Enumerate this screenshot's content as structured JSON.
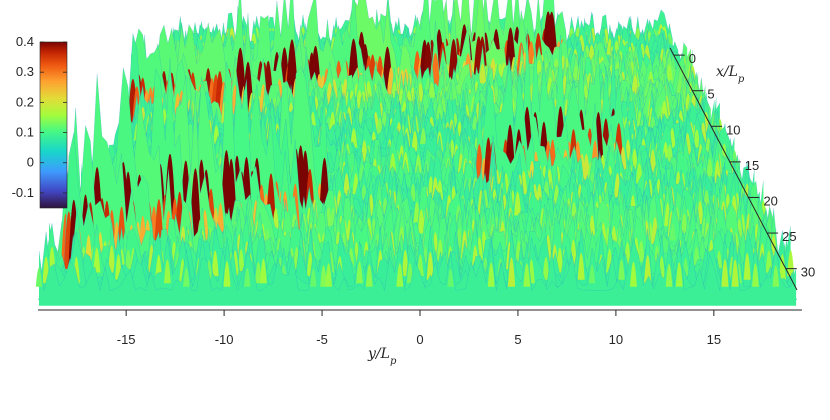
{
  "chart_data": {
    "type": "surface",
    "xlabel": "y/L_p",
    "ylabel": "x/L_p",
    "xlabel_main": "y/L",
    "xlabel_sub": "p",
    "ylabel_main": "x/L",
    "ylabel_sub": "p",
    "xlim": [
      -19.5,
      19.5
    ],
    "ylim": [
      -1,
      33
    ],
    "x_ticks": [
      -15,
      -10,
      -5,
      0,
      5,
      10,
      15
    ],
    "y_ticks": [
      0,
      5,
      10,
      15,
      20,
      25,
      30
    ],
    "colorbar": {
      "colormap": "turbo",
      "ticks": [
        0.4,
        0.3,
        0.2,
        0.1,
        0,
        -0.1
      ],
      "range": [
        -0.15,
        0.4
      ]
    },
    "streaks": [
      {
        "description": "high-amplitude streak",
        "y_start": -19,
        "x_start": 10.5,
        "y_end": -2,
        "x_end": 6,
        "peak": 0.35
      },
      {
        "description": "high-amplitude streak",
        "y_start": -3,
        "x_start": 6,
        "y_end": 10,
        "x_end": 3,
        "peak": 0.3
      },
      {
        "description": "high-amplitude streak",
        "y_start": -18,
        "x_start": 30,
        "y_end": -6,
        "x_end": 24,
        "peak": 0.38
      },
      {
        "description": "high-amplitude streak",
        "y_start": 4,
        "x_start": 20,
        "y_end": 12,
        "x_end": 17,
        "peak": 0.33
      }
    ]
  }
}
